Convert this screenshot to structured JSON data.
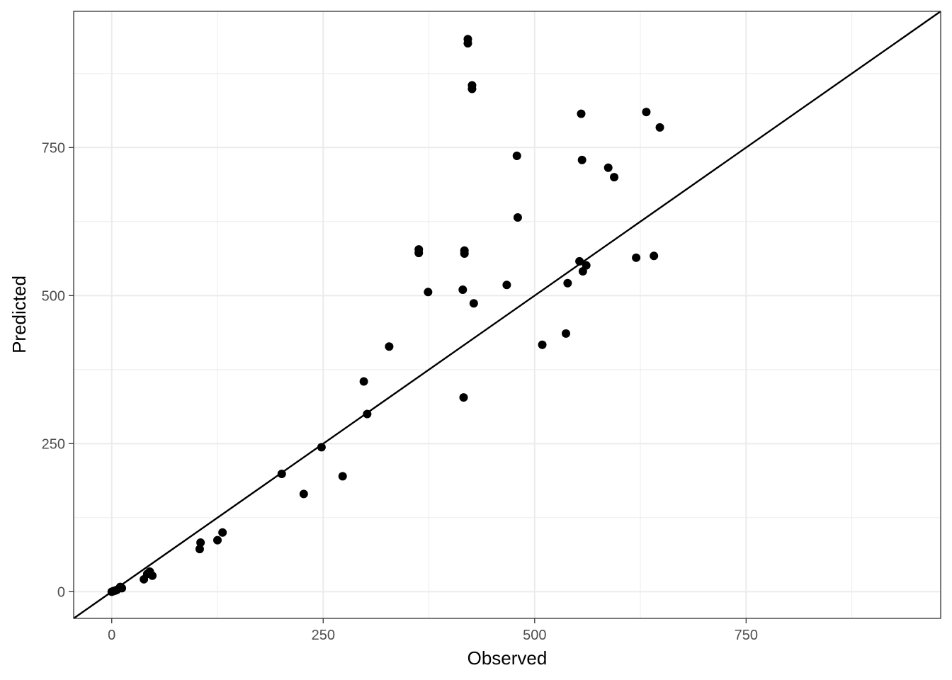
{
  "chart_data": {
    "type": "scatter",
    "xlabel": "Observed",
    "ylabel": "Predicted",
    "xlim": [
      -45,
      980
    ],
    "ylim": [
      -45,
      980
    ],
    "x_ticks": [
      0,
      250,
      500,
      750
    ],
    "y_ticks": [
      0,
      250,
      500,
      750
    ],
    "grid": true,
    "reference_line": "y = x",
    "point_color": "#000000",
    "line_color": "#000000",
    "grid_color": "#ebebeb",
    "points": [
      {
        "x": 0,
        "y": 0
      },
      {
        "x": 2,
        "y": 1
      },
      {
        "x": 4,
        "y": 2
      },
      {
        "x": 6,
        "y": 3
      },
      {
        "x": 10,
        "y": 8
      },
      {
        "x": 12,
        "y": 6
      },
      {
        "x": 38,
        "y": 21
      },
      {
        "x": 42,
        "y": 30
      },
      {
        "x": 45,
        "y": 34
      },
      {
        "x": 48,
        "y": 27
      },
      {
        "x": 104,
        "y": 72
      },
      {
        "x": 105,
        "y": 83
      },
      {
        "x": 125,
        "y": 87
      },
      {
        "x": 131,
        "y": 100
      },
      {
        "x": 201,
        "y": 199
      },
      {
        "x": 227,
        "y": 165
      },
      {
        "x": 248,
        "y": 244
      },
      {
        "x": 273,
        "y": 195
      },
      {
        "x": 298,
        "y": 355
      },
      {
        "x": 302,
        "y": 300
      },
      {
        "x": 328,
        "y": 414
      },
      {
        "x": 363,
        "y": 578
      },
      {
        "x": 363,
        "y": 572
      },
      {
        "x": 374,
        "y": 506
      },
      {
        "x": 415,
        "y": 510
      },
      {
        "x": 416,
        "y": 328
      },
      {
        "x": 417,
        "y": 576
      },
      {
        "x": 417,
        "y": 571
      },
      {
        "x": 421,
        "y": 933
      },
      {
        "x": 421,
        "y": 926
      },
      {
        "x": 426,
        "y": 855
      },
      {
        "x": 426,
        "y": 849
      },
      {
        "x": 428,
        "y": 487
      },
      {
        "x": 467,
        "y": 518
      },
      {
        "x": 479,
        "y": 736
      },
      {
        "x": 480,
        "y": 632
      },
      {
        "x": 509,
        "y": 417
      },
      {
        "x": 537,
        "y": 436
      },
      {
        "x": 539,
        "y": 521
      },
      {
        "x": 553,
        "y": 558
      },
      {
        "x": 555,
        "y": 807
      },
      {
        "x": 556,
        "y": 729
      },
      {
        "x": 557,
        "y": 541
      },
      {
        "x": 561,
        "y": 551
      },
      {
        "x": 587,
        "y": 716
      },
      {
        "x": 594,
        "y": 700
      },
      {
        "x": 620,
        "y": 564
      },
      {
        "x": 632,
        "y": 810
      },
      {
        "x": 641,
        "y": 567
      },
      {
        "x": 648,
        "y": 784
      }
    ]
  }
}
